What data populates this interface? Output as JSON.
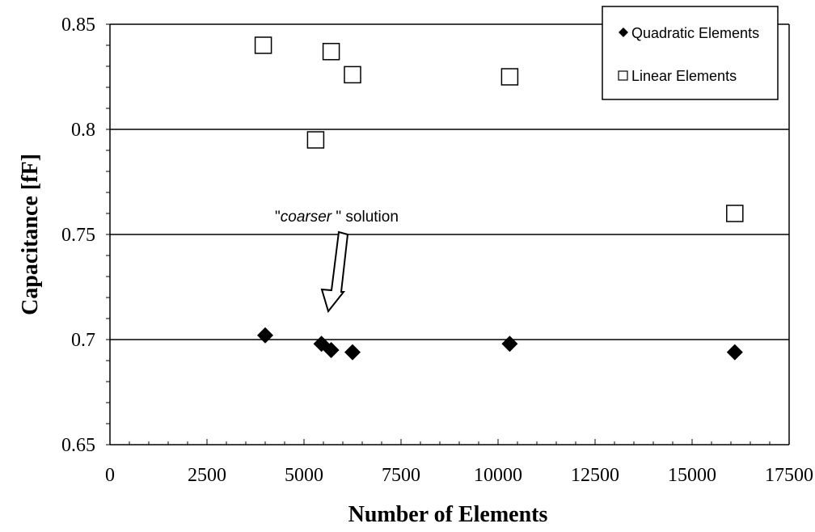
{
  "chart_data": {
    "type": "scatter",
    "xlabel": "Number of Elements",
    "ylabel": "Capacitance [fF]",
    "xlim": [
      0,
      17500
    ],
    "ylim": [
      0.65,
      0.85
    ],
    "x_ticks": [
      "0",
      "2500",
      "5000",
      "7500",
      "10000",
      "12500",
      "15000",
      "17500"
    ],
    "y_ticks": [
      "0.85",
      "0.8",
      "0.75",
      "0.7",
      "0.65"
    ],
    "grid": "horizontal major",
    "legend_position": "top-right",
    "series": [
      {
        "name": "Quadratic Elements",
        "marker": "filled-diamond",
        "color": "#000000",
        "points": [
          {
            "x": 4000,
            "y": 0.702
          },
          {
            "x": 5450,
            "y": 0.698
          },
          {
            "x": 5700,
            "y": 0.695
          },
          {
            "x": 6250,
            "y": 0.694
          },
          {
            "x": 10300,
            "y": 0.698
          },
          {
            "x": 16100,
            "y": 0.694
          }
        ]
      },
      {
        "name": "Linear Elements",
        "marker": "open-square",
        "color": "#000000",
        "points": [
          {
            "x": 3950,
            "y": 0.84
          },
          {
            "x": 5300,
            "y": 0.795
          },
          {
            "x": 5700,
            "y": 0.837
          },
          {
            "x": 6250,
            "y": 0.826
          },
          {
            "x": 10300,
            "y": 0.825
          },
          {
            "x": 16100,
            "y": 0.76
          }
        ]
      }
    ],
    "annotation": {
      "quote_open": "\"",
      "italic_word": "coarser",
      "rest": " \" solution",
      "points_to": {
        "x": 5600,
        "y": 0.715
      }
    }
  }
}
